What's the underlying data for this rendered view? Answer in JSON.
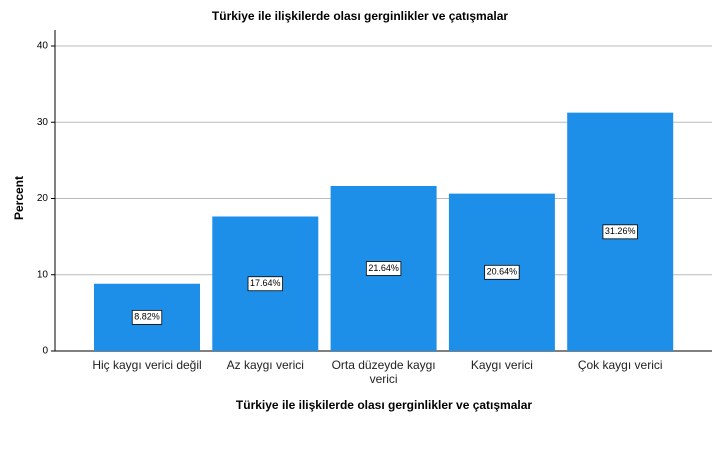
{
  "chart_data": {
    "type": "bar",
    "title": "Türkiye ile ilişkilerde olası gerginlikler ve çatışmalar",
    "x_label": "Türkiye ile ilişkilerde olası gerginlikler ve çatışmalar",
    "y_label": "Percent",
    "categories": [
      "Hiç kaygı verici değil",
      "Az kaygı verici",
      "Orta düzeyde kaygı verici",
      "Kaygı verici",
      "Çok kaygı verici"
    ],
    "values": [
      8.82,
      17.64,
      21.64,
      20.64,
      31.26
    ],
    "value_labels": [
      "8.82%",
      "17.64%",
      "21.64%",
      "20.64%",
      "31.26%"
    ],
    "color": "#1e8fe8",
    "ylim": [
      0,
      40
    ],
    "yticks": [
      0,
      10,
      20,
      30,
      40
    ],
    "grid": true
  }
}
